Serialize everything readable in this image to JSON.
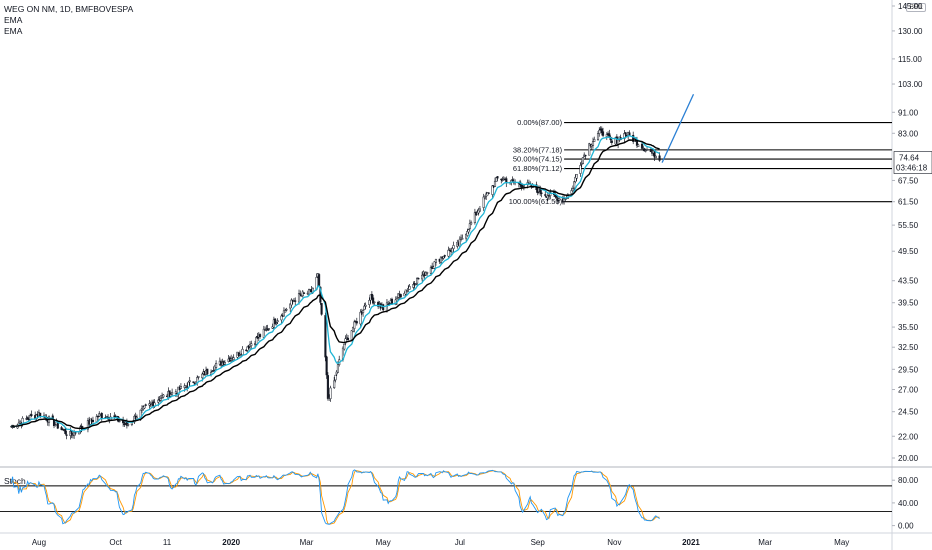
{
  "header": {
    "title": "WEG ON NM, 1D, BMFBOVESPA",
    "indicator_1": "EMA",
    "indicator_2": "EMA",
    "currency": "BRL"
  },
  "stoch_panel": {
    "title": "Stoch"
  },
  "colors": {
    "ema_fast": "#1fb5d5",
    "ema_slow": "#000000",
    "candle_up": "#ffffff",
    "candle_down": "#131722",
    "projection": "#2a7fd4",
    "stoch_k": "#2196f3",
    "stoch_d": "#ff9800",
    "price_badge": "#131722"
  },
  "chart_data": {
    "type": "candlestick",
    "price_axis": {
      "ticks": [
        "145.00",
        "130.00",
        "115.00",
        "103.00",
        "91.00",
        "83.00",
        "74.64",
        "67.50",
        "61.50",
        "55.50",
        "49.50",
        "43.50",
        "39.50",
        "35.50",
        "32.50",
        "29.50",
        "27.00",
        "24.50",
        "22.00",
        "20.00"
      ],
      "tick_values": [
        145,
        130,
        115,
        103,
        91,
        83,
        74.64,
        67.5,
        61.5,
        55.5,
        49.5,
        43.5,
        39.5,
        35.5,
        32.5,
        29.5,
        27,
        24.5,
        22,
        20
      ],
      "scale": "log",
      "current_price": "74.64",
      "countdown": "03:46:18"
    },
    "time_axis": {
      "labels": [
        "Aug",
        "Oct",
        "11",
        "2020",
        "Mar",
        "May",
        "Jul",
        "Sep",
        "Nov",
        "2021",
        "Mar",
        "May"
      ],
      "dates": [
        "2019-08-01",
        "2019-10-01",
        "2019-11-11",
        "2020-01-01",
        "2020-03-01",
        "2020-05-01",
        "2020-07-01",
        "2020-09-01",
        "2020-11-01",
        "2021-01-01",
        "2021-03-01",
        "2021-05-01"
      ]
    },
    "price_anchors": [
      [
        "2019-07-10",
        23.0
      ],
      [
        "2019-07-20",
        23.6
      ],
      [
        "2019-08-01",
        24.3
      ],
      [
        "2019-08-12",
        23.4
      ],
      [
        "2019-08-25",
        22.1
      ],
      [
        "2019-09-05",
        22.9
      ],
      [
        "2019-09-18",
        24.1
      ],
      [
        "2019-09-28",
        24.0
      ],
      [
        "2019-10-10",
        23.1
      ],
      [
        "2019-10-22",
        24.6
      ],
      [
        "2019-11-05",
        26.0
      ],
      [
        "2019-11-20",
        26.9
      ],
      [
        "2019-12-05",
        28.3
      ],
      [
        "2019-12-20",
        30.0
      ],
      [
        "2020-01-05",
        31.4
      ],
      [
        "2020-01-20",
        33.5
      ],
      [
        "2020-02-01",
        35.6
      ],
      [
        "2020-02-10",
        37.5
      ],
      [
        "2020-02-22",
        40.5
      ],
      [
        "2020-03-05",
        41.5
      ],
      [
        "2020-03-10",
        44.5
      ],
      [
        "2020-03-13",
        37.0
      ],
      [
        "2020-03-16",
        31.0
      ],
      [
        "2020-03-18",
        26.0
      ],
      [
        "2020-03-23",
        28.0
      ],
      [
        "2020-03-31",
        33.0
      ],
      [
        "2020-04-10",
        36.5
      ],
      [
        "2020-04-20",
        40.5
      ],
      [
        "2020-05-01",
        38.5
      ],
      [
        "2020-05-10",
        40.0
      ],
      [
        "2020-05-20",
        42.0
      ],
      [
        "2020-06-01",
        44.5
      ],
      [
        "2020-06-15",
        48.0
      ],
      [
        "2020-06-30",
        51.0
      ],
      [
        "2020-07-10",
        56.0
      ],
      [
        "2020-07-20",
        62.0
      ],
      [
        "2020-08-01",
        68.5
      ],
      [
        "2020-08-10",
        67.0
      ],
      [
        "2020-08-25",
        66.0
      ],
      [
        "2020-09-08",
        63.5
      ],
      [
        "2020-09-21",
        62.0
      ],
      [
        "2020-09-28",
        64.5
      ],
      [
        "2020-10-05",
        73.0
      ],
      [
        "2020-10-12",
        79.0
      ],
      [
        "2020-10-22",
        84.0
      ],
      [
        "2020-10-30",
        79.5
      ],
      [
        "2020-11-10",
        83.0
      ],
      [
        "2020-11-20",
        79.5
      ],
      [
        "2020-11-28",
        77.0
      ],
      [
        "2020-12-07",
        74.64
      ]
    ],
    "fibonacci": [
      {
        "label": "0.00%(87.00)",
        "level": 87.0
      },
      {
        "label": "38.20%(77.18)",
        "level": 77.18
      },
      {
        "label": "50.00%(74.15)",
        "level": 74.15
      },
      {
        "label": "61.80%(71.12)",
        "level": 71.12
      },
      {
        "label": "100.00%(61.50)",
        "level": 61.5
      }
    ],
    "fib_range": [
      "2020-09-22",
      "2021-12-31"
    ],
    "projection_line": [
      [
        "2020-12-09",
        73.0
      ],
      [
        "2021-01-03",
        98.5
      ]
    ],
    "stochastic": {
      "levels": [
        80,
        40,
        0
      ],
      "tick_labels": [
        "80.00",
        "40.00",
        "0.00"
      ],
      "bands": [
        70,
        25
      ],
      "range": [
        -6,
        98
      ]
    }
  }
}
